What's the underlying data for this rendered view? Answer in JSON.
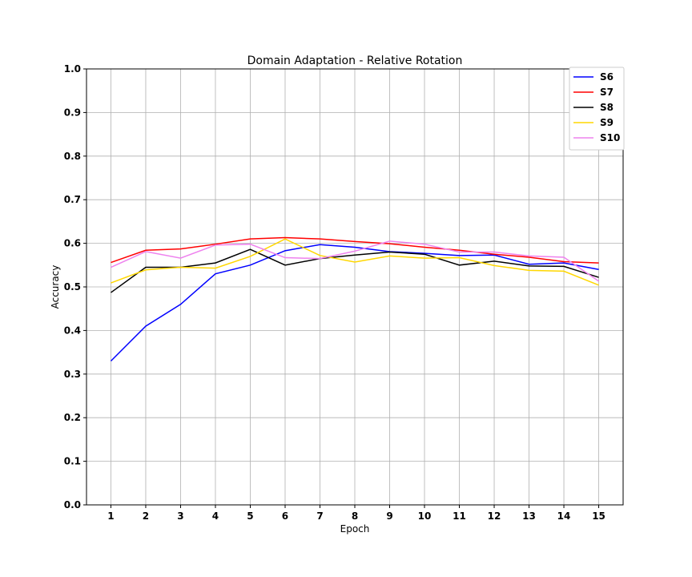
{
  "chart_data": {
    "type": "line",
    "title": "Domain Adaptation - Relative Rotation",
    "xlabel": "Epoch",
    "ylabel": "Accuracy",
    "x": [
      1,
      2,
      3,
      4,
      5,
      6,
      7,
      8,
      9,
      10,
      11,
      12,
      13,
      14,
      15
    ],
    "xlim": [
      0.3,
      15.7
    ],
    "ylim": [
      0.0,
      1.0
    ],
    "y_ticks": [
      "0.0",
      "0.1",
      "0.2",
      "0.3",
      "0.4",
      "0.5",
      "0.6",
      "0.7",
      "0.8",
      "0.9",
      "1.0"
    ],
    "x_ticks": [
      "1",
      "2",
      "3",
      "4",
      "5",
      "6",
      "7",
      "8",
      "9",
      "10",
      "11",
      "12",
      "13",
      "14",
      "15"
    ],
    "grid": true,
    "legend_position": "top-right",
    "series": [
      {
        "name": "S6",
        "color": "#0000ff",
        "values": [
          0.33,
          0.41,
          0.46,
          0.53,
          0.55,
          0.583,
          0.597,
          0.591,
          0.581,
          0.577,
          0.572,
          0.573,
          0.552,
          0.555,
          0.54
        ]
      },
      {
        "name": "S7",
        "color": "#ff0000",
        "values": [
          0.556,
          0.584,
          0.587,
          0.598,
          0.61,
          0.613,
          0.61,
          0.604,
          0.599,
          0.591,
          0.584,
          0.575,
          0.568,
          0.558,
          0.555
        ]
      },
      {
        "name": "S8",
        "color": "#000000",
        "values": [
          0.487,
          0.545,
          0.545,
          0.555,
          0.586,
          0.55,
          0.565,
          0.573,
          0.58,
          0.575,
          0.55,
          0.559,
          0.548,
          0.547,
          0.522
        ]
      },
      {
        "name": "S9",
        "color": "#ffd700",
        "values": [
          0.509,
          0.539,
          0.545,
          0.543,
          0.57,
          0.61,
          0.572,
          0.557,
          0.571,
          0.566,
          0.567,
          0.549,
          0.538,
          0.536,
          0.504
        ]
      },
      {
        "name": "S10",
        "color": "#ee82ee",
        "values": [
          0.545,
          0.581,
          0.566,
          0.596,
          0.598,
          0.567,
          0.565,
          0.582,
          0.605,
          0.598,
          0.58,
          0.58,
          0.571,
          0.568,
          0.513
        ]
      }
    ]
  }
}
